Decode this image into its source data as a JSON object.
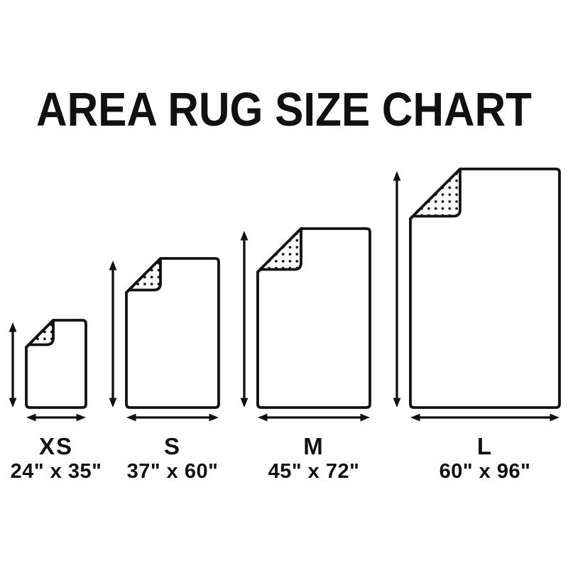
{
  "title": "AREA RUG SIZE CHART",
  "sizes": [
    {
      "id": "xs",
      "label": "XS",
      "dimensions": "24\" x 35\"",
      "width_in": 24,
      "height_in": 35
    },
    {
      "id": "s",
      "label": "S",
      "dimensions": "37\" x 60\"",
      "width_in": 37,
      "height_in": 60
    },
    {
      "id": "m",
      "label": "M",
      "dimensions": "45\" x 72\"",
      "width_in": 45,
      "height_in": 72
    },
    {
      "id": "l",
      "label": "L",
      "dimensions": "60\" x 96\"",
      "width_in": 60,
      "height_in": 96
    }
  ],
  "colors": {
    "ink": "#111111",
    "background": "#ffffff"
  }
}
